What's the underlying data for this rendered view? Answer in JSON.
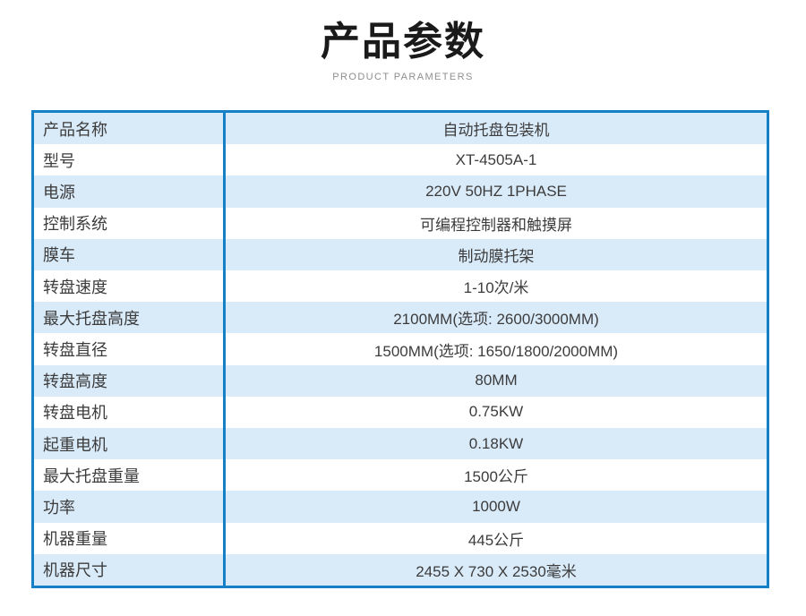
{
  "header": {
    "title": "产品参数",
    "subtitle": "PRODUCT PARAMETERS"
  },
  "table": {
    "rows": [
      {
        "label": "产品名称",
        "value": "自动托盘包装机"
      },
      {
        "label": "型号",
        "value": "XT-4505A-1"
      },
      {
        "label": "电源",
        "value": "220V 50HZ 1PHASE"
      },
      {
        "label": "控制系统",
        "value": "可编程控制器和触摸屏"
      },
      {
        "label": "膜车",
        "value": "制动膜托架"
      },
      {
        "label": "转盘速度",
        "value": "1-10次/米"
      },
      {
        "label": "最大托盘高度",
        "value": "2100MM(选项: 2600/3000MM)"
      },
      {
        "label": "转盘直径",
        "value": "1500MM(选项: 1650/1800/2000MM)"
      },
      {
        "label": "转盘高度",
        "value": "80MM"
      },
      {
        "label": "转盘电机",
        "value": "0.75KW"
      },
      {
        "label": "起重电机",
        "value": "0.18KW"
      },
      {
        "label": "最大托盘重量",
        "value": "1500公斤"
      },
      {
        "label": "功率",
        "value": "1000W"
      },
      {
        "label": "机器重量",
        "value": "445公斤"
      },
      {
        "label": "机器尺寸",
        "value": "2455 X 730 X 2530毫米"
      }
    ]
  },
  "colors": {
    "border_blue": "#1580c6",
    "row_alt_blue": "#d9eaf9",
    "text_dark": "#3c3c3c",
    "subtitle_gray": "#8f8f8f",
    "title_black": "#1a1a1a"
  }
}
